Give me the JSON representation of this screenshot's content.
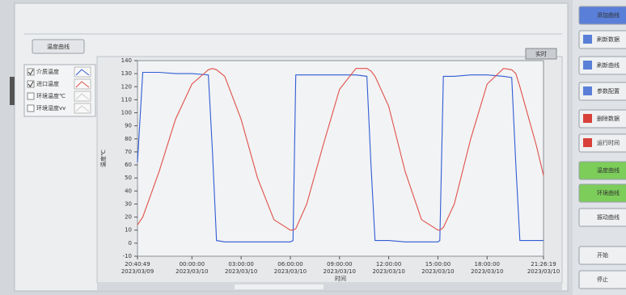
{
  "header_button": "温度曲线",
  "toggle_button": "实时",
  "legend": {
    "hidden_series": [
      "环境温度℃",
      "环境湿度vv"
    ]
  },
  "side_buttons": [
    "添加曲线",
    "刷新数据",
    "刷新曲线",
    "参数配置",
    "删除数据",
    "运行时间",
    "温度曲线",
    "环境曲线",
    "振动曲线",
    "开始",
    "停止"
  ],
  "chart_data": {
    "type": "line",
    "ylabel": "温度℃",
    "xlabel": "时间",
    "x": [
      "2023-03-09T20:40:49",
      "2023-03-09T21:00:00",
      "2023-03-09T22:00:00",
      "2023-03-09T23:00:00",
      "2023-03-10T00:00:00",
      "2023-03-10T01:00:00",
      "2023-03-10T01:15:00",
      "2023-03-10T01:30:00",
      "2023-03-10T02:00:00",
      "2023-03-10T03:00:00",
      "2023-03-10T04:00:00",
      "2023-03-10T05:00:00",
      "2023-03-10T06:00:00",
      "2023-03-10T06:10:00",
      "2023-03-10T06:20:00",
      "2023-03-10T07:00:00",
      "2023-03-10T08:00:00",
      "2023-03-10T09:00:00",
      "2023-03-10T10:00:00",
      "2023-03-10T10:40:00",
      "2023-03-10T10:55:00",
      "2023-03-10T11:10:00",
      "2023-03-10T12:00:00",
      "2023-03-10T13:00:00",
      "2023-03-10T14:00:00",
      "2023-03-10T15:00:00",
      "2023-03-10T15:07:00",
      "2023-03-10T15:20:00",
      "2023-03-10T16:00:00",
      "2023-03-10T17:00:00",
      "2023-03-10T18:00:00",
      "2023-03-10T19:00:00",
      "2023-03-10T19:30:00",
      "2023-03-10T19:45:00",
      "2023-03-10T20:00:00",
      "2023-03-10T21:00:00",
      "2023-03-10T21:26:19"
    ],
    "series": [
      {
        "name": "介质温度",
        "color": "#2f5bd6",
        "values": [
          62,
          131,
          131,
          130,
          130,
          129,
          70,
          2,
          1,
          1,
          1,
          1,
          1,
          2,
          129,
          129,
          129,
          129,
          129,
          128,
          60,
          2,
          2,
          1,
          1,
          1,
          2,
          128,
          128,
          129,
          129,
          128,
          127,
          60,
          2,
          2,
          2
        ]
      },
      {
        "name": "进口温度",
        "color": "#e0504a",
        "values": [
          14,
          20,
          55,
          95,
          122,
          133,
          134,
          133,
          128,
          95,
          50,
          18,
          10,
          10,
          11,
          30,
          75,
          118,
          134,
          134,
          132,
          128,
          105,
          55,
          18,
          10,
          10,
          12,
          30,
          80,
          122,
          134,
          133,
          130,
          120,
          75,
          52
        ]
      }
    ],
    "xlim": [
      "2023-03-09T20:40:49",
      "2023-03-10T21:26:19"
    ],
    "xticks": [
      {
        "value": "2023-03-09T20:40:49",
        "label": [
          "20:40:49",
          "2023/03/09"
        ]
      },
      {
        "value": "2023-03-10T00:00:00",
        "label": [
          "00:00:00",
          "2023/03/10"
        ]
      },
      {
        "value": "2023-03-10T03:00:00",
        "label": [
          "03:00:00",
          "2023/03/10"
        ]
      },
      {
        "value": "2023-03-10T06:00:00",
        "label": [
          "06:00:00",
          "2023/03/10"
        ]
      },
      {
        "value": "2023-03-10T09:00:00",
        "label": [
          "09:00:00",
          "2023/03/10"
        ]
      },
      {
        "value": "2023-03-10T12:00:00",
        "label": [
          "12:00:00",
          "2023/03/10"
        ]
      },
      {
        "value": "2023-03-10T15:00:00",
        "label": [
          "15:00:00",
          "2023/03/10"
        ]
      },
      {
        "value": "2023-03-10T18:00:00",
        "label": [
          "18:00:00",
          "2023/03/10"
        ]
      },
      {
        "value": "2023-03-10T21:26:19",
        "label": [
          "21:26:19",
          "2023/03/10"
        ]
      }
    ],
    "ylim": [
      -10,
      140
    ],
    "yticks": [
      -10,
      0,
      10,
      20,
      30,
      40,
      50,
      60,
      70,
      80,
      90,
      100,
      110,
      120,
      130,
      140
    ],
    "grid": false
  }
}
